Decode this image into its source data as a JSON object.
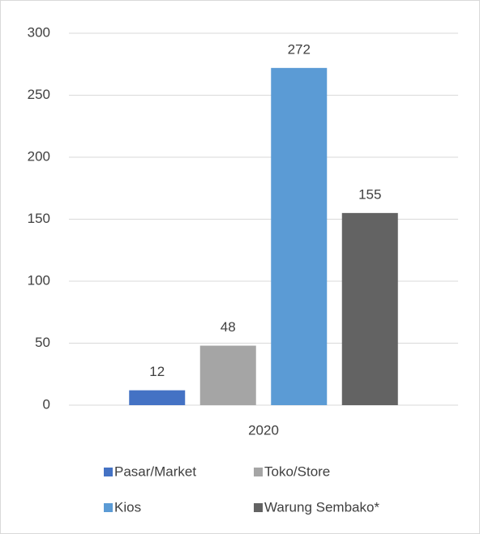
{
  "chart_data": {
    "type": "bar",
    "categories": [
      "2020"
    ],
    "series": [
      {
        "name": "Pasar/Market",
        "color": "#4472c4",
        "values": [
          12
        ]
      },
      {
        "name": "Toko/Store",
        "color": "#a5a5a5",
        "values": [
          48
        ]
      },
      {
        "name": "Kios",
        "color": "#5b9bd5",
        "values": [
          272
        ]
      },
      {
        "name": "Warung Sembako*",
        "color": "#636363",
        "values": [
          155
        ]
      }
    ],
    "ylim": [
      0,
      300
    ],
    "yticks": [
      0,
      50,
      100,
      150,
      200,
      250,
      300
    ],
    "grid": true,
    "legend": "bottom"
  }
}
